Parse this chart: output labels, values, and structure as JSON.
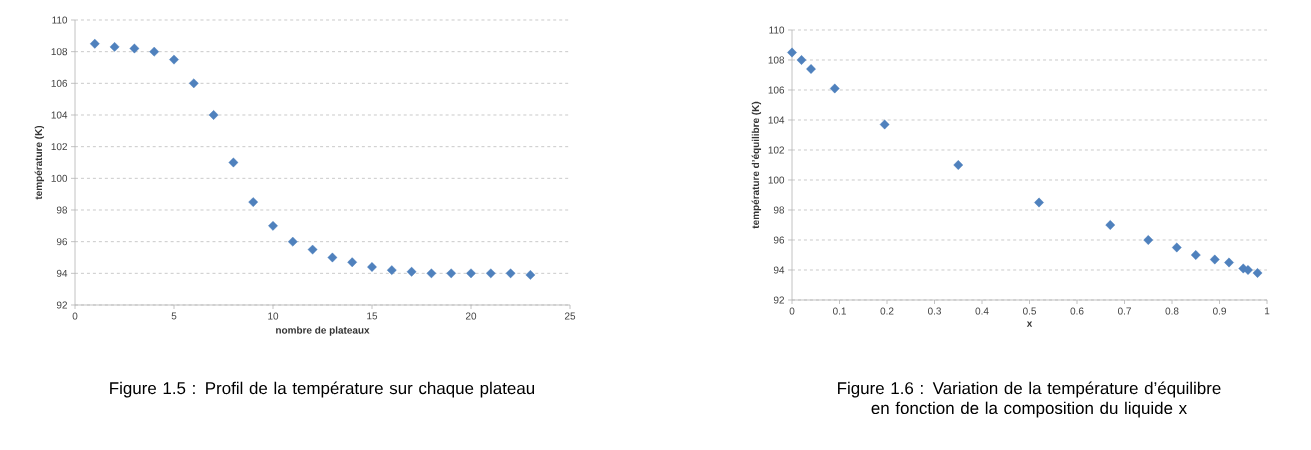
{
  "chart_data": [
    {
      "type": "scatter",
      "xlabel": "nombre de plateaux",
      "ylabel": "température (K)",
      "x": [
        1,
        2,
        3,
        4,
        5,
        6,
        7,
        8,
        9,
        10,
        11,
        12,
        13,
        14,
        15,
        16,
        17,
        18,
        19,
        20,
        21,
        22,
        23
      ],
      "values": [
        108.5,
        108.3,
        108.2,
        108.0,
        107.5,
        106.0,
        104.0,
        101.0,
        98.5,
        97.0,
        96.0,
        95.5,
        95.0,
        94.7,
        94.4,
        94.2,
        94.1,
        94.0,
        94.0,
        94.0,
        94.0,
        94.0,
        93.9
      ],
      "color": "#4f81bd",
      "marker": "diamond",
      "grid": "y",
      "xlim": [
        0,
        25
      ],
      "xticks": [
        0,
        5,
        10,
        15,
        20,
        25
      ],
      "ylim": [
        92,
        110
      ],
      "yticks": [
        92,
        94,
        96,
        98,
        100,
        102,
        104,
        106,
        108,
        110
      ],
      "annotations": [
        "Figure 1.5 : Profil de la température sur chaque plateau"
      ]
    },
    {
      "type": "scatter",
      "xlabel": "x",
      "ylabel": "température d’équilibre (K)",
      "x": [
        0,
        0.02,
        0.04,
        0.09,
        0.195,
        0.35,
        0.52,
        0.67,
        0.75,
        0.81,
        0.85,
        0.89,
        0.92,
        0.95,
        0.96,
        0.98
      ],
      "values": [
        108.5,
        108.0,
        107.4,
        106.1,
        103.7,
        101.0,
        98.5,
        97.0,
        96.0,
        95.5,
        95.0,
        94.7,
        94.5,
        94.1,
        94.0,
        93.8
      ],
      "color": "#4f81bd",
      "marker": "diamond",
      "grid": "y",
      "xlim": [
        0,
        1
      ],
      "xticks": [
        0,
        0.1,
        0.2,
        0.3,
        0.4,
        0.5,
        0.6,
        0.7,
        0.8,
        0.9,
        1
      ],
      "ylim": [
        92,
        110
      ],
      "yticks": [
        92,
        94,
        96,
        98,
        100,
        102,
        104,
        106,
        108,
        110
      ],
      "annotations": [
        "Figure 1.6 : Variation de la température d’équilibre en fonction de la composition du liquide x"
      ]
    }
  ]
}
